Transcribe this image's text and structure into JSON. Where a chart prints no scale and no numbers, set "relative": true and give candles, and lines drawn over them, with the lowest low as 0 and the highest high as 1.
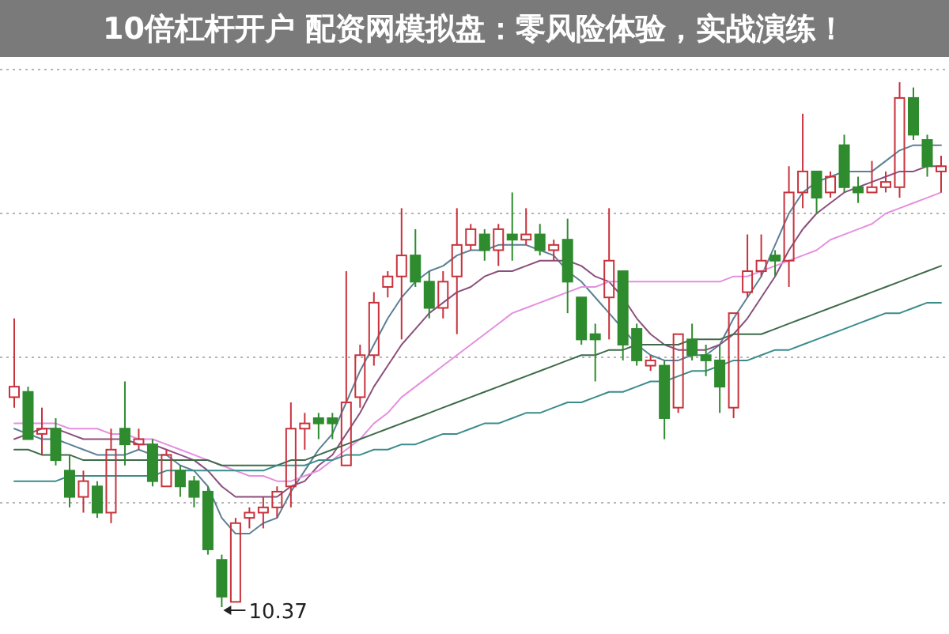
{
  "chart_data": {
    "type": "candlestick",
    "relative": true,
    "title": "10倍杠杆开户 配资网模拟盘：零风险体验，实战演练！",
    "grid": "y",
    "annotations": [
      "10.37"
    ],
    "categories": [
      null,
      null,
      null,
      null,
      null,
      null,
      null,
      null,
      null,
      null,
      null,
      null,
      null,
      null,
      null,
      null,
      null,
      null,
      null,
      null,
      null,
      null,
      null,
      null,
      null,
      null,
      null,
      null,
      null,
      null,
      null,
      null,
      null,
      null,
      null,
      null,
      null,
      null,
      null,
      null,
      null,
      null,
      null,
      null,
      null,
      null,
      null,
      null,
      null,
      null,
      null,
      null,
      null,
      null,
      null,
      null,
      null,
      null,
      null,
      null,
      null,
      null,
      null,
      null,
      null,
      null,
      null,
      null
    ],
    "ohlc": [
      [
        0.4,
        0.55,
        0.38,
        0.42
      ],
      [
        0.41,
        0.42,
        0.32,
        0.32
      ],
      [
        0.33,
        0.38,
        0.29,
        0.34
      ],
      [
        0.34,
        0.36,
        0.27,
        0.28
      ],
      [
        0.26,
        0.29,
        0.19,
        0.21
      ],
      [
        0.21,
        0.26,
        0.18,
        0.24
      ],
      [
        0.23,
        0.24,
        0.17,
        0.18
      ],
      [
        0.18,
        0.34,
        0.16,
        0.3
      ],
      [
        0.34,
        0.43,
        0.27,
        0.31
      ],
      [
        0.31,
        0.34,
        0.3,
        0.32
      ],
      [
        0.31,
        0.32,
        0.23,
        0.24
      ],
      [
        0.23,
        0.3,
        0.23,
        0.29
      ],
      [
        0.26,
        0.27,
        0.21,
        0.23
      ],
      [
        0.24,
        0.25,
        0.19,
        0.21
      ],
      [
        0.22,
        0.23,
        0.1,
        0.11
      ],
      [
        0.09,
        0.1,
        0,
        0.02
      ],
      [
        0.01,
        0.17,
        0.01,
        0.16
      ],
      [
        0.17,
        0.19,
        0.15,
        0.18
      ],
      [
        0.18,
        0.21,
        0.15,
        0.19
      ],
      [
        0.19,
        0.23,
        0.17,
        0.22
      ],
      [
        0.23,
        0.39,
        0.19,
        0.34
      ],
      [
        0.34,
        0.37,
        0.3,
        0.35
      ],
      [
        0.36,
        0.37,
        0.32,
        0.35
      ],
      [
        0.36,
        0.37,
        0.32,
        0.35
      ],
      [
        0.27,
        0.64,
        0.27,
        0.39
      ],
      [
        0.4,
        0.5,
        0.38,
        0.48
      ],
      [
        0.48,
        0.6,
        0.46,
        0.58
      ],
      [
        0.61,
        0.64,
        0.59,
        0.63
      ],
      [
        0.63,
        0.76,
        0.51,
        0.67
      ],
      [
        0.67,
        0.72,
        0.61,
        0.62
      ],
      [
        0.62,
        0.64,
        0.55,
        0.57
      ],
      [
        0.57,
        0.64,
        0.55,
        0.62
      ],
      [
        0.63,
        0.76,
        0.52,
        0.69
      ],
      [
        0.69,
        0.73,
        0.68,
        0.72
      ],
      [
        0.71,
        0.72,
        0.66,
        0.68
      ],
      [
        0.68,
        0.73,
        0.65,
        0.72
      ],
      [
        0.71,
        0.79,
        0.66,
        0.7
      ],
      [
        0.7,
        0.76,
        0.69,
        0.71
      ],
      [
        0.71,
        0.73,
        0.67,
        0.68
      ],
      [
        0.68,
        0.7,
        0.66,
        0.69
      ],
      [
        0.7,
        0.74,
        0.56,
        0.62
      ],
      [
        0.59,
        0.59,
        0.5,
        0.51
      ],
      [
        0.52,
        0.54,
        0.43,
        0.51
      ],
      [
        0.59,
        0.76,
        0.51,
        0.66
      ],
      [
        0.64,
        0.64,
        0.47,
        0.5
      ],
      [
        0.53,
        0.54,
        0.46,
        0.47
      ],
      [
        0.46,
        0.48,
        0.45,
        0.47
      ],
      [
        0.46,
        0.47,
        0.32,
        0.36
      ],
      [
        0.38,
        0.52,
        0.37,
        0.52
      ],
      [
        0.51,
        0.54,
        0.47,
        0.48
      ],
      [
        0.48,
        0.5,
        0.44,
        0.47
      ],
      [
        0.47,
        0.5,
        0.37,
        0.42
      ],
      [
        0.38,
        0.56,
        0.36,
        0.56
      ],
      [
        0.6,
        0.71,
        0.59,
        0.64
      ],
      [
        0.64,
        0.71,
        0.63,
        0.66
      ],
      [
        0.67,
        0.68,
        0.63,
        0.66
      ],
      [
        0.66,
        0.84,
        0.61,
        0.79
      ],
      [
        0.79,
        0.94,
        0.76,
        0.83
      ],
      [
        0.83,
        0.83,
        0.75,
        0.78
      ],
      [
        0.79,
        0.83,
        0.78,
        0.82
      ],
      [
        0.88,
        0.9,
        0.79,
        0.8
      ],
      [
        0.8,
        0.82,
        0.77,
        0.79
      ],
      [
        0.79,
        0.85,
        0.79,
        0.8
      ],
      [
        0.8,
        0.83,
        0.79,
        0.81
      ],
      [
        0.8,
        1,
        0.78,
        0.97
      ],
      [
        0.97,
        0.99,
        0.89,
        0.9
      ],
      [
        0.89,
        0.9,
        0.82,
        0.84
      ],
      [
        0.83,
        0.86,
        0.79,
        0.84
      ]
    ],
    "series": [
      {
        "type": "line",
        "color": "#5b7f95",
        "values": [
          0.34,
          0.33,
          0.32,
          0.32,
          0.31,
          0.3,
          0.29,
          0.29,
          0.29,
          0.3,
          0.29,
          0.29,
          0.27,
          0.26,
          0.23,
          0.17,
          0.14,
          0.14,
          0.16,
          0.17,
          0.22,
          0.26,
          0.3,
          0.33,
          0.39,
          0.45,
          0.5,
          0.55,
          0.59,
          0.62,
          0.64,
          0.65,
          0.67,
          0.68,
          0.68,
          0.69,
          0.69,
          0.69,
          0.68,
          0.67,
          0.64,
          0.62,
          0.59,
          0.56,
          0.53,
          0.5,
          0.48,
          0.47,
          0.47,
          0.48,
          0.48,
          0.5,
          0.55,
          0.59,
          0.63,
          0.69,
          0.75,
          0.79,
          0.81,
          0.82,
          0.83,
          0.83,
          0.83,
          0.85,
          0.87,
          0.88,
          0.88,
          0.88
        ]
      },
      {
        "type": "line",
        "color": "#8a4f7d",
        "values": [
          0.32,
          0.33,
          0.34,
          0.34,
          0.33,
          0.32,
          0.32,
          0.32,
          0.32,
          0.31,
          0.31,
          0.3,
          0.29,
          0.28,
          0.26,
          0.23,
          0.21,
          0.21,
          0.21,
          0.21,
          0.23,
          0.24,
          0.27,
          0.29,
          0.33,
          0.37,
          0.42,
          0.46,
          0.5,
          0.53,
          0.56,
          0.58,
          0.6,
          0.61,
          0.63,
          0.64,
          0.64,
          0.65,
          0.66,
          0.66,
          0.66,
          0.65,
          0.63,
          0.62,
          0.59,
          0.55,
          0.52,
          0.5,
          0.49,
          0.49,
          0.49,
          0.5,
          0.52,
          0.55,
          0.59,
          0.63,
          0.68,
          0.72,
          0.75,
          0.77,
          0.79,
          0.8,
          0.81,
          0.82,
          0.83,
          0.83,
          0.84,
          0.84
        ]
      },
      {
        "type": "line",
        "color": "#e58fe0",
        "values": [
          0.35,
          0.35,
          0.35,
          0.35,
          0.34,
          0.34,
          0.34,
          0.33,
          0.33,
          0.32,
          0.32,
          0.31,
          0.3,
          0.29,
          0.28,
          0.27,
          0.26,
          0.25,
          0.25,
          0.24,
          0.24,
          0.25,
          0.26,
          0.28,
          0.3,
          0.32,
          0.35,
          0.37,
          0.4,
          0.42,
          0.44,
          0.46,
          0.48,
          0.5,
          0.52,
          0.54,
          0.56,
          0.57,
          0.58,
          0.59,
          0.6,
          0.61,
          0.61,
          0.62,
          0.62,
          0.62,
          0.62,
          0.62,
          0.62,
          0.62,
          0.62,
          0.62,
          0.63,
          0.63,
          0.64,
          0.65,
          0.66,
          0.67,
          0.68,
          0.7,
          0.71,
          0.72,
          0.73,
          0.75,
          0.76,
          0.77,
          0.78,
          0.79
        ]
      },
      {
        "type": "line",
        "color": "#3d6b4a",
        "values": [
          0.3,
          0.3,
          0.29,
          0.29,
          0.29,
          0.28,
          0.28,
          0.28,
          0.28,
          0.28,
          0.28,
          0.28,
          0.28,
          0.28,
          0.28,
          0.27,
          0.27,
          0.27,
          0.27,
          0.27,
          0.28,
          0.28,
          0.29,
          0.3,
          0.31,
          0.32,
          0.33,
          0.34,
          0.35,
          0.36,
          0.37,
          0.38,
          0.39,
          0.4,
          0.41,
          0.42,
          0.43,
          0.44,
          0.45,
          0.46,
          0.47,
          0.48,
          0.48,
          0.49,
          0.49,
          0.5,
          0.5,
          0.5,
          0.5,
          0.51,
          0.51,
          0.51,
          0.52,
          0.52,
          0.52,
          0.53,
          0.54,
          0.55,
          0.56,
          0.57,
          0.58,
          0.59,
          0.6,
          0.61,
          0.62,
          0.63,
          0.64,
          0.65
        ]
      },
      {
        "type": "line",
        "color": "#3b8c8c",
        "values": [
          0.24,
          0.24,
          0.24,
          0.24,
          0.25,
          0.25,
          0.25,
          0.25,
          0.25,
          0.25,
          0.25,
          0.26,
          0.26,
          0.26,
          0.26,
          0.26,
          0.26,
          0.26,
          0.26,
          0.27,
          0.27,
          0.27,
          0.28,
          0.28,
          0.29,
          0.29,
          0.3,
          0.3,
          0.31,
          0.31,
          0.32,
          0.33,
          0.33,
          0.34,
          0.35,
          0.35,
          0.36,
          0.37,
          0.37,
          0.38,
          0.39,
          0.39,
          0.4,
          0.41,
          0.41,
          0.42,
          0.43,
          0.43,
          0.44,
          0.45,
          0.45,
          0.46,
          0.47,
          0.47,
          0.48,
          0.49,
          0.49,
          0.5,
          0.51,
          0.52,
          0.53,
          0.54,
          0.55,
          0.56,
          0.56,
          0.57,
          0.58,
          0.58
        ]
      }
    ]
  }
}
